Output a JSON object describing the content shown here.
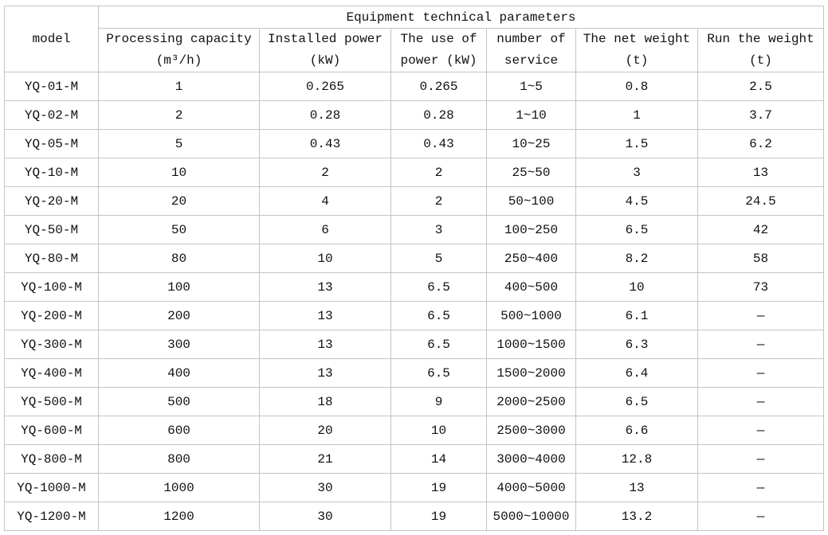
{
  "table": {
    "model_header": "model",
    "group_header": "Equipment technical parameters",
    "column_headers": [
      [
        "Processing capacity",
        "(m³/h)"
      ],
      [
        "Installed power",
        "(kW)"
      ],
      [
        "The use of",
        "power (kW)"
      ],
      [
        "number of",
        "service"
      ],
      [
        "The net weight",
        "(t)"
      ],
      [
        "Run the weight",
        "(t)"
      ]
    ],
    "rows": [
      [
        "YQ-01-M",
        "1",
        "0.265",
        "0.265",
        "1~5",
        "0.8",
        "2.5"
      ],
      [
        "YQ-02-M",
        "2",
        "0.28",
        "0.28",
        "1~10",
        "1",
        "3.7"
      ],
      [
        "YQ-05-M",
        "5",
        "0.43",
        "0.43",
        "10~25",
        "1.5",
        "6.2"
      ],
      [
        "YQ-10-M",
        "10",
        "2",
        "2",
        "25~50",
        "3",
        "13"
      ],
      [
        "YQ-20-M",
        "20",
        "4",
        "2",
        "50~100",
        "4.5",
        "24.5"
      ],
      [
        "YQ-50-M",
        "50",
        "6",
        "3",
        "100~250",
        "6.5",
        "42"
      ],
      [
        "YQ-80-M",
        "80",
        "10",
        "5",
        "250~400",
        "8.2",
        "58"
      ],
      [
        "YQ-100-M",
        "100",
        "13",
        "6.5",
        "400~500",
        "10",
        "73"
      ],
      [
        "YQ-200-M",
        "200",
        "13",
        "6.5",
        "500~1000",
        "6.1",
        "—"
      ],
      [
        "YQ-300-M",
        "300",
        "13",
        "6.5",
        "1000~1500",
        "6.3",
        "—"
      ],
      [
        "YQ-400-M",
        "400",
        "13",
        "6.5",
        "1500~2000",
        "6.4",
        "—"
      ],
      [
        "YQ-500-M",
        "500",
        "18",
        "9",
        "2000~2500",
        "6.5",
        "—"
      ],
      [
        "YQ-600-M",
        "600",
        "20",
        "10",
        "2500~3000",
        "6.6",
        "—"
      ],
      [
        "YQ-800-M",
        "800",
        "21",
        "14",
        "3000~4000",
        "12.8",
        "—"
      ],
      [
        "YQ-1000-M",
        "1000",
        "30",
        "19",
        "4000~5000",
        "13",
        "—"
      ],
      [
        "YQ-1200-M",
        "1200",
        "30",
        "19",
        "5000~10000",
        "13.2",
        "—"
      ]
    ]
  }
}
